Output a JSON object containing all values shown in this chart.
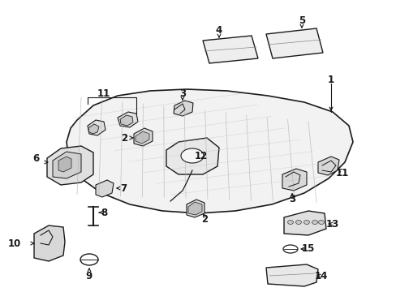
{
  "bg_color": "#ffffff",
  "line_color": "#1a1a1a",
  "fill_light": "#f0f0f0",
  "fill_mid": "#d8d8d8",
  "fill_dark": "#b8b8b8",
  "figsize": [
    4.89,
    3.6
  ],
  "dpi": 100,
  "label_fontsize": 8.5
}
